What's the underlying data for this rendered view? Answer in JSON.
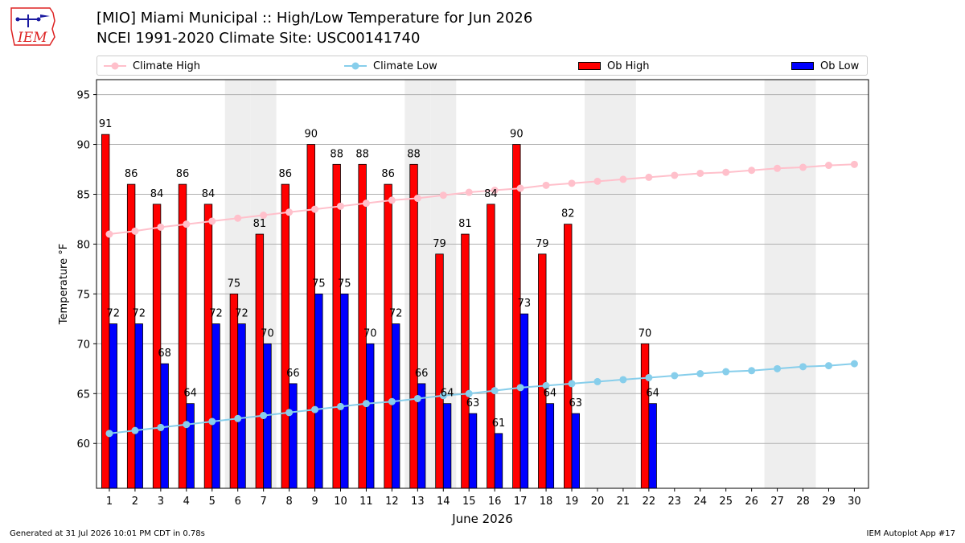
{
  "header": {
    "title_line1": "[MIO] Miami Municipal :: High/Low Temperature for Jun 2026",
    "title_line2": "NCEI 1991-2020 Climate Site: USC00141740",
    "logo_text": "IEM"
  },
  "legend": {
    "climate_high": "Climate High",
    "climate_low": "Climate Low",
    "ob_high": "Ob High",
    "ob_low": "Ob Low"
  },
  "footer": {
    "left": "Generated at 31 Jul 2026 10:01 PM CDT in 0.78s",
    "right": "IEM Autoplot App #17"
  },
  "colors": {
    "ob_high": "#ff0000",
    "ob_low": "#0000ff",
    "climate_high": "#ffc0cb",
    "climate_low": "#87ceeb",
    "weekend_shade": "#eeeeee",
    "grid": "#b0b0b0"
  },
  "chart_data": {
    "type": "bar",
    "xlabel": "June 2026",
    "ylabel": "Temperature °F",
    "ylim": [
      55.5,
      96.5
    ],
    "yticks": [
      60,
      65,
      70,
      75,
      80,
      85,
      90,
      95
    ],
    "categories": [
      "1",
      "2",
      "3",
      "4",
      "5",
      "6",
      "7",
      "8",
      "9",
      "10",
      "11",
      "12",
      "13",
      "14",
      "15",
      "16",
      "17",
      "18",
      "19",
      "20",
      "21",
      "22",
      "23",
      "24",
      "25",
      "26",
      "27",
      "28",
      "29",
      "30"
    ],
    "shaded_days": [
      6,
      7,
      13,
      14,
      20,
      21,
      27,
      28
    ],
    "grid": "horizontal",
    "legend_position": "top",
    "series": [
      {
        "name": "Ob High",
        "kind": "bar",
        "values": [
          91,
          86,
          84,
          86,
          84,
          75,
          81,
          86,
          90,
          88,
          88,
          86,
          88,
          79,
          81,
          84,
          90,
          79,
          82,
          null,
          null,
          70,
          null,
          null,
          null,
          null,
          null,
          null,
          null,
          null
        ]
      },
      {
        "name": "Ob Low",
        "kind": "bar",
        "values": [
          72,
          72,
          68,
          64,
          72,
          72,
          70,
          66,
          75,
          75,
          70,
          72,
          66,
          64,
          63,
          61,
          73,
          64,
          63,
          null,
          null,
          64,
          null,
          null,
          null,
          null,
          null,
          null,
          null,
          null
        ]
      },
      {
        "name": "Climate High",
        "kind": "line",
        "values": [
          81.0,
          81.3,
          81.7,
          82.0,
          82.3,
          82.6,
          82.9,
          83.2,
          83.5,
          83.8,
          84.1,
          84.4,
          84.6,
          84.9,
          85.2,
          85.4,
          85.6,
          85.9,
          86.1,
          86.3,
          86.5,
          86.7,
          86.9,
          87.1,
          87.2,
          87.4,
          87.6,
          87.7,
          87.9,
          88.0
        ]
      },
      {
        "name": "Climate Low",
        "kind": "line",
        "values": [
          61.0,
          61.3,
          61.6,
          61.9,
          62.2,
          62.5,
          62.8,
          63.1,
          63.4,
          63.7,
          64.0,
          64.2,
          64.5,
          64.8,
          65.0,
          65.3,
          65.6,
          65.8,
          66.0,
          66.2,
          66.4,
          66.6,
          66.8,
          67.0,
          67.2,
          67.3,
          67.5,
          67.7,
          67.8,
          68.0
        ]
      }
    ]
  }
}
